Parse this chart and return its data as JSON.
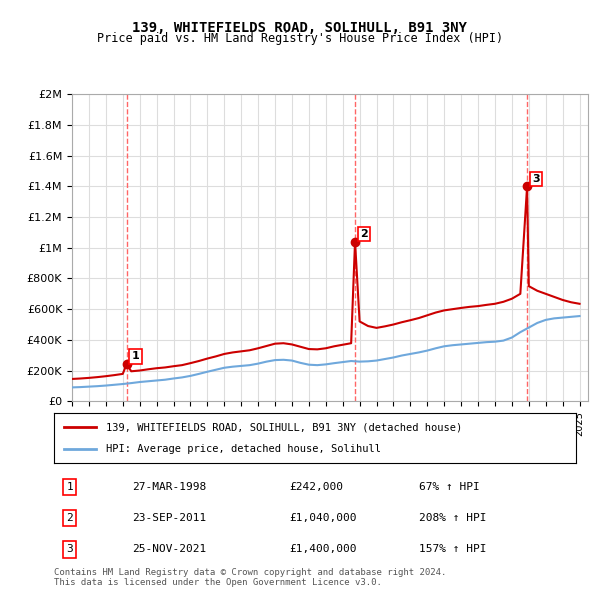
{
  "title": "139, WHITEFIELDS ROAD, SOLIHULL, B91 3NY",
  "subtitle": "Price paid vs. HM Land Registry's House Price Index (HPI)",
  "legend_line1": "139, WHITEFIELDS ROAD, SOLIHULL, B91 3NY (detached house)",
  "legend_line2": "HPI: Average price, detached house, Solihull",
  "footer1": "Contains HM Land Registry data © Crown copyright and database right 2024.",
  "footer2": "This data is licensed under the Open Government Licence v3.0.",
  "transactions": [
    {
      "num": 1,
      "date": "27-MAR-1998",
      "price": 242000,
      "pct": "67% ↑ HPI",
      "year": 1998.23
    },
    {
      "num": 2,
      "date": "23-SEP-2011",
      "price": 1040000,
      "pct": "208% ↑ HPI",
      "year": 2011.73
    },
    {
      "num": 3,
      "date": "25-NOV-2021",
      "price": 1400000,
      "pct": "157% ↑ HPI",
      "year": 2021.9
    }
  ],
  "hpi_color": "#6fa8dc",
  "price_color": "#cc0000",
  "vline_color": "#ff6666",
  "marker_color": "#cc0000",
  "background_color": "#ffffff",
  "grid_color": "#dddddd",
  "ylim": [
    0,
    2000000
  ],
  "xlim_start": 1995,
  "xlim_end": 2025.5,
  "yticks": [
    0,
    200000,
    400000,
    600000,
    800000,
    1000000,
    1200000,
    1400000,
    1600000,
    1800000,
    2000000
  ],
  "ytick_labels": [
    "£0",
    "£200K",
    "£400K",
    "£600K",
    "£800K",
    "£1M",
    "£1.2M",
    "£1.4M",
    "£1.6M",
    "£1.8M",
    "£2M"
  ],
  "hpi_data_years": [
    1995,
    1995.5,
    1996,
    1996.5,
    1997,
    1997.5,
    1998,
    1998.5,
    1999,
    1999.5,
    2000,
    2000.5,
    2001,
    2001.5,
    2002,
    2002.5,
    2003,
    2003.5,
    2004,
    2004.5,
    2005,
    2005.5,
    2006,
    2006.5,
    2007,
    2007.5,
    2008,
    2008.5,
    2009,
    2009.5,
    2010,
    2010.5,
    2011,
    2011.5,
    2012,
    2012.5,
    2013,
    2013.5,
    2014,
    2014.5,
    2015,
    2015.5,
    2016,
    2016.5,
    2017,
    2017.5,
    2018,
    2018.5,
    2019,
    2019.5,
    2020,
    2020.5,
    2021,
    2021.5,
    2022,
    2022.5,
    2023,
    2023.5,
    2024,
    2024.5,
    2025
  ],
  "hpi_values": [
    90000,
    92000,
    95000,
    98000,
    102000,
    107000,
    112000,
    118000,
    125000,
    130000,
    135000,
    140000,
    148000,
    155000,
    165000,
    178000,
    192000,
    205000,
    218000,
    225000,
    230000,
    235000,
    245000,
    258000,
    268000,
    270000,
    265000,
    250000,
    238000,
    235000,
    240000,
    248000,
    255000,
    262000,
    258000,
    260000,
    265000,
    275000,
    285000,
    298000,
    308000,
    318000,
    330000,
    345000,
    358000,
    365000,
    370000,
    375000,
    380000,
    385000,
    388000,
    395000,
    415000,
    450000,
    480000,
    510000,
    530000,
    540000,
    545000,
    550000,
    555000
  ],
  "price_data_years": [
    1995,
    1995.5,
    1996,
    1996.5,
    1997,
    1997.5,
    1998,
    1998.23,
    1998.5,
    1999,
    1999.5,
    2000,
    2000.5,
    2001,
    2001.5,
    2002,
    2002.5,
    2003,
    2003.5,
    2004,
    2004.5,
    2005,
    2005.5,
    2006,
    2006.5,
    2007,
    2007.5,
    2008,
    2008.5,
    2009,
    2009.5,
    2010,
    2010.5,
    2011,
    2011.5,
    2011.73,
    2012,
    2012.5,
    2013,
    2013.5,
    2014,
    2014.5,
    2015,
    2015.5,
    2016,
    2016.5,
    2017,
    2017.5,
    2018,
    2018.5,
    2019,
    2019.5,
    2020,
    2020.5,
    2021,
    2021.5,
    2021.9,
    2022,
    2022.5,
    2023,
    2023.5,
    2024,
    2024.5,
    2025
  ],
  "price_values": [
    145000,
    148000,
    152000,
    157000,
    163000,
    170000,
    178000,
    242000,
    195000,
    200000,
    208000,
    215000,
    220000,
    228000,
    235000,
    248000,
    262000,
    278000,
    292000,
    308000,
    318000,
    325000,
    332000,
    345000,
    360000,
    375000,
    378000,
    370000,
    355000,
    340000,
    338000,
    345000,
    358000,
    368000,
    378000,
    1040000,
    520000,
    490000,
    478000,
    488000,
    500000,
    515000,
    528000,
    542000,
    560000,
    578000,
    592000,
    600000,
    608000,
    615000,
    620000,
    628000,
    635000,
    648000,
    668000,
    700000,
    1400000,
    750000,
    720000,
    700000,
    680000,
    660000,
    645000,
    635000
  ]
}
